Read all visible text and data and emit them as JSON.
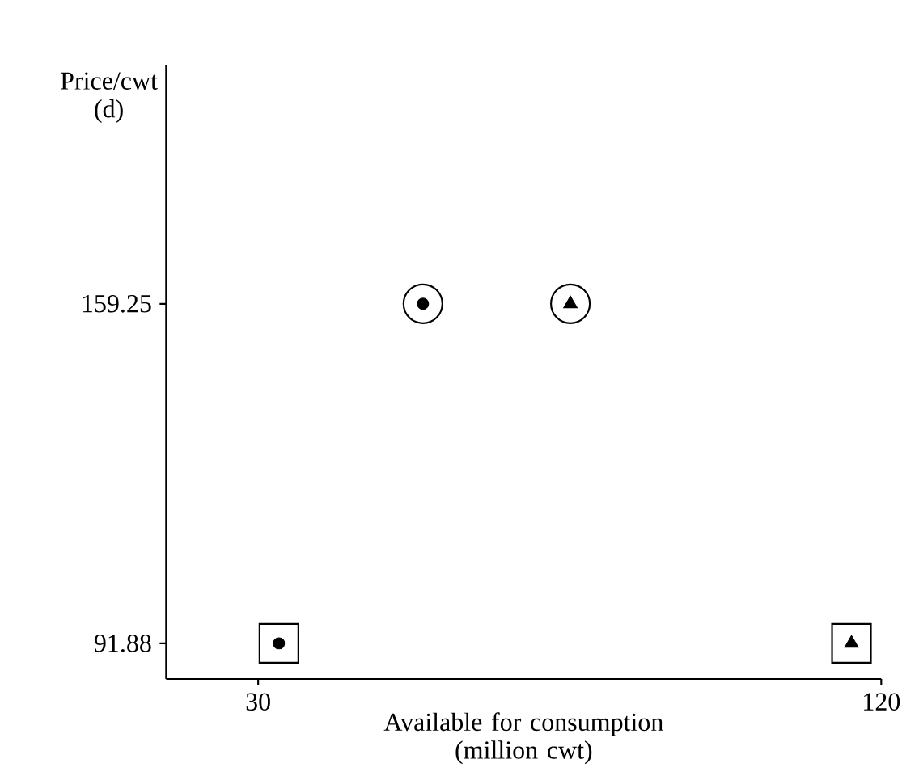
{
  "chart_data": {
    "type": "scatter",
    "xlabel": "Available for consumption (million cwt)",
    "ylabel": "Price/cwt (d)",
    "xlim": [
      16.7,
      120
    ],
    "ylim": [
      84.8,
      206.7
    ],
    "xticks": [
      30,
      120
    ],
    "yticks": [
      91.88,
      159.25
    ],
    "grid": false,
    "series": [
      {
        "color": "#000000",
        "marker": "circle",
        "x": [
          53.8,
          75.1
        ],
        "values": [
          159.25,
          159.25
        ]
      },
      {
        "color": "#000000",
        "marker": "square",
        "x": [
          33,
          115.7
        ],
        "values": [
          91.88,
          91.88
        ]
      },
      {
        "color": "#000000",
        "marker": "circle",
        "x": [
          33,
          53.8
        ],
        "values": [
          91.88,
          159.25
        ]
      },
      {
        "color": "#000000",
        "marker": "triangle",
        "x": [
          75.1,
          115.7
        ],
        "values": [
          159.25,
          91.88
        ]
      }
    ]
  }
}
